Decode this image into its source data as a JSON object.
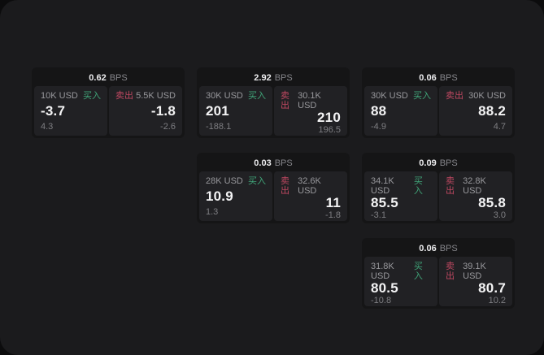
{
  "labels": {
    "bps_unit": "BPS",
    "buy": "买入",
    "sell": "卖出"
  },
  "colors": {
    "backdrop": "#0c0c0d",
    "window_bg": "#1b1b1d",
    "card_bg": "#151516",
    "panel_bg": "#212124",
    "buy_green": "#40a478",
    "sell_red": "#bf4861",
    "value_white": "#f4f4f5",
    "muted_gray": "#98989c"
  },
  "cards": [
    {
      "bps": "0.62",
      "buy": {
        "size": "10K USD",
        "price": "-3.7",
        "sub": "4.3"
      },
      "sell": {
        "size": "5.5K USD",
        "price": "-1.8",
        "sub": "-2.6"
      }
    },
    {
      "bps": "2.92",
      "buy": {
        "size": "30K USD",
        "price": "201",
        "sub": "-188.1"
      },
      "sell": {
        "size": "30.1K USD",
        "price": "210",
        "sub": "196.5"
      }
    },
    {
      "bps": "0.06",
      "buy": {
        "size": "30K USD",
        "price": "88",
        "sub": "-4.9"
      },
      "sell": {
        "size": "30K USD",
        "price": "88.2",
        "sub": "4.7"
      }
    },
    {
      "bps": "0.03",
      "buy": {
        "size": "28K USD",
        "price": "10.9",
        "sub": "1.3"
      },
      "sell": {
        "size": "32.6K USD",
        "price": "11",
        "sub": "-1.8"
      }
    },
    {
      "bps": "0.09",
      "buy": {
        "size": "34.1K USD",
        "price": "85.5",
        "sub": "-3.1"
      },
      "sell": {
        "size": "32.8K USD",
        "price": "85.8",
        "sub": "3.0"
      }
    },
    {
      "bps": "0.06",
      "buy": {
        "size": "31.8K USD",
        "price": "80.5",
        "sub": "-10.8"
      },
      "sell": {
        "size": "39.1K USD",
        "price": "80.7",
        "sub": "10.2"
      }
    }
  ]
}
